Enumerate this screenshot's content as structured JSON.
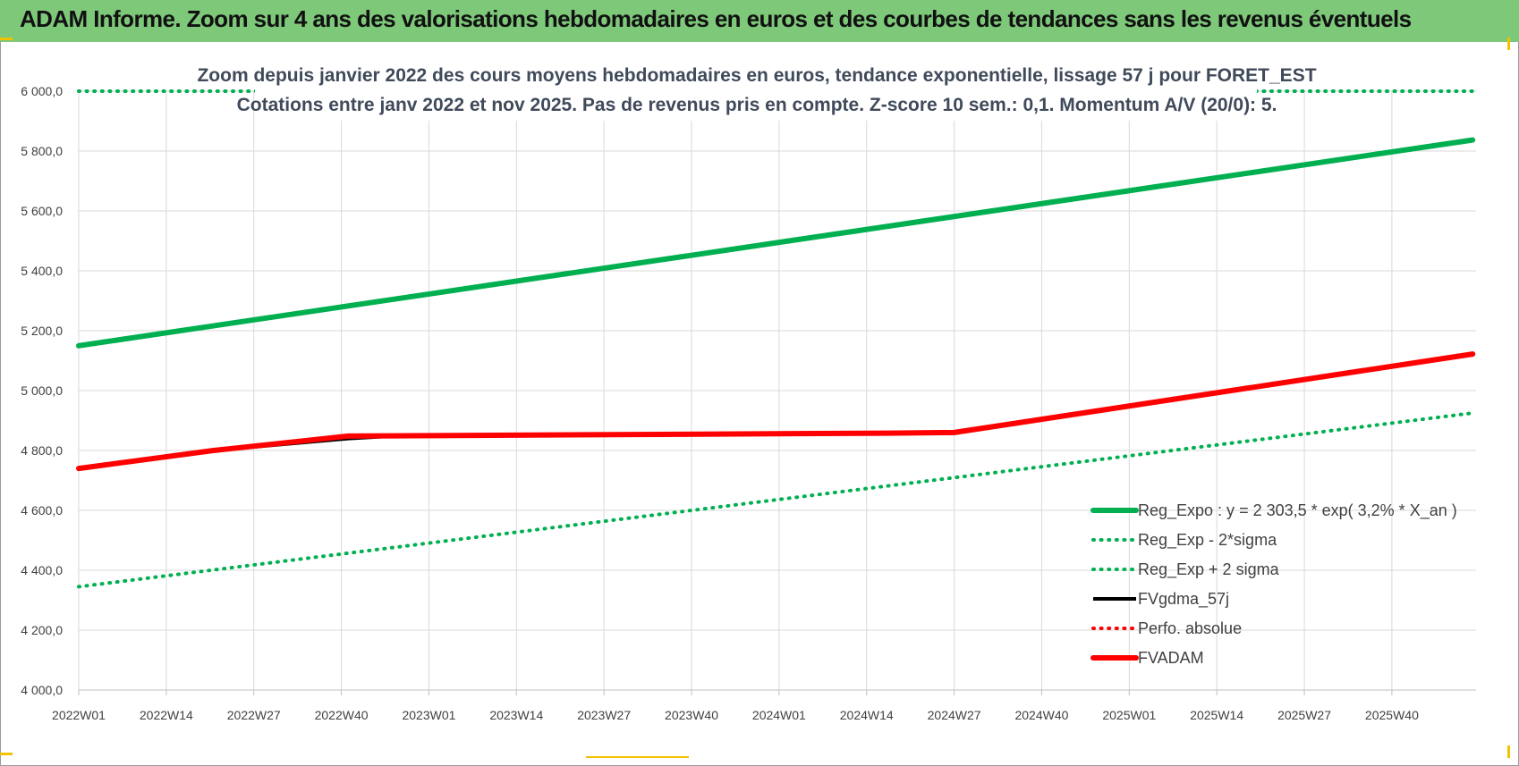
{
  "banner": {
    "title": "ADAM Informe. Zoom sur 4 ans des valorisations hebdomadaires en euros et des courbes de tendances sans les revenus éventuels"
  },
  "colors": {
    "banner_bg": "#7ec87a",
    "green": "#00b050",
    "dotted_green": "#00b050",
    "black": "#000000",
    "red": "#ff0000"
  },
  "chart_data": {
    "type": "line",
    "title": [
      "Zoom depuis janvier 2022 des cours moyens hebdomadaires en euros, tendance exponentielle, lissage 57 j pour FORET_EST",
      "Cotations entre janv 2022 et nov 2025. Pas de revenus pris en compte. Z-score 10 sem.: 0,1. Momentum A/V (20/0): 5."
    ],
    "xlabel": "",
    "ylabel": "",
    "ylim": [
      4000,
      6000
    ],
    "yticks": [
      "6 000,0",
      "5 800,0",
      "5 600,0",
      "5 400,0",
      "5 200,0",
      "5 000,0",
      "4 800,0",
      "4 600,0",
      "4 400,0",
      "4 200,0",
      "4 000,0"
    ],
    "ytick_values": [
      6000,
      5800,
      5600,
      5400,
      5200,
      5000,
      4800,
      4600,
      4400,
      4200,
      4000
    ],
    "xticks": [
      "2022W01",
      "2022W14",
      "2022W27",
      "2022W40",
      "2023W01",
      "2023W14",
      "2023W27",
      "2023W40",
      "2024W01",
      "2024W14",
      "2024W27",
      "2024W40",
      "2025W01",
      "2025W14",
      "2025W27",
      "2025W40"
    ],
    "n_weeks": 208,
    "week_step": 13,
    "grid": true,
    "legend_position": "bottom-right",
    "series": [
      {
        "name": "Reg_Expo : y = 2 303,5 * exp( 3,2% *  X_an )",
        "style": "solid-thick",
        "color": "#00b050",
        "points": [
          [
            0,
            5150
          ],
          [
            207,
            5837
          ]
        ]
      },
      {
        "name": "Reg_Exp - 2*sigma",
        "style": "dotted",
        "color": "#00b050",
        "points": [
          [
            0,
            4345
          ],
          [
            207,
            4925
          ]
        ]
      },
      {
        "name": "Reg_Exp + 2 sigma",
        "style": "dotted",
        "color": "#00b050",
        "points": [
          [
            0,
            6000
          ],
          [
            207,
            6000
          ]
        ]
      },
      {
        "name": "FVgdma_57j",
        "style": "solid",
        "color": "#000000",
        "points": [
          [
            0,
            4740
          ],
          [
            20,
            4800
          ],
          [
            40,
            4840
          ],
          [
            48,
            4850
          ],
          [
            130,
            4858
          ],
          [
            207,
            5122
          ]
        ]
      },
      {
        "name": "Perfo. absolue",
        "style": "dotted",
        "color": "#ff0000",
        "points": []
      },
      {
        "name": "FVADAM",
        "style": "solid-thick",
        "color": "#ff0000",
        "points": [
          [
            0,
            4740
          ],
          [
            20,
            4800
          ],
          [
            40,
            4848
          ],
          [
            120,
            4858
          ],
          [
            130,
            4860
          ],
          [
            207,
            5122
          ]
        ]
      }
    ]
  }
}
